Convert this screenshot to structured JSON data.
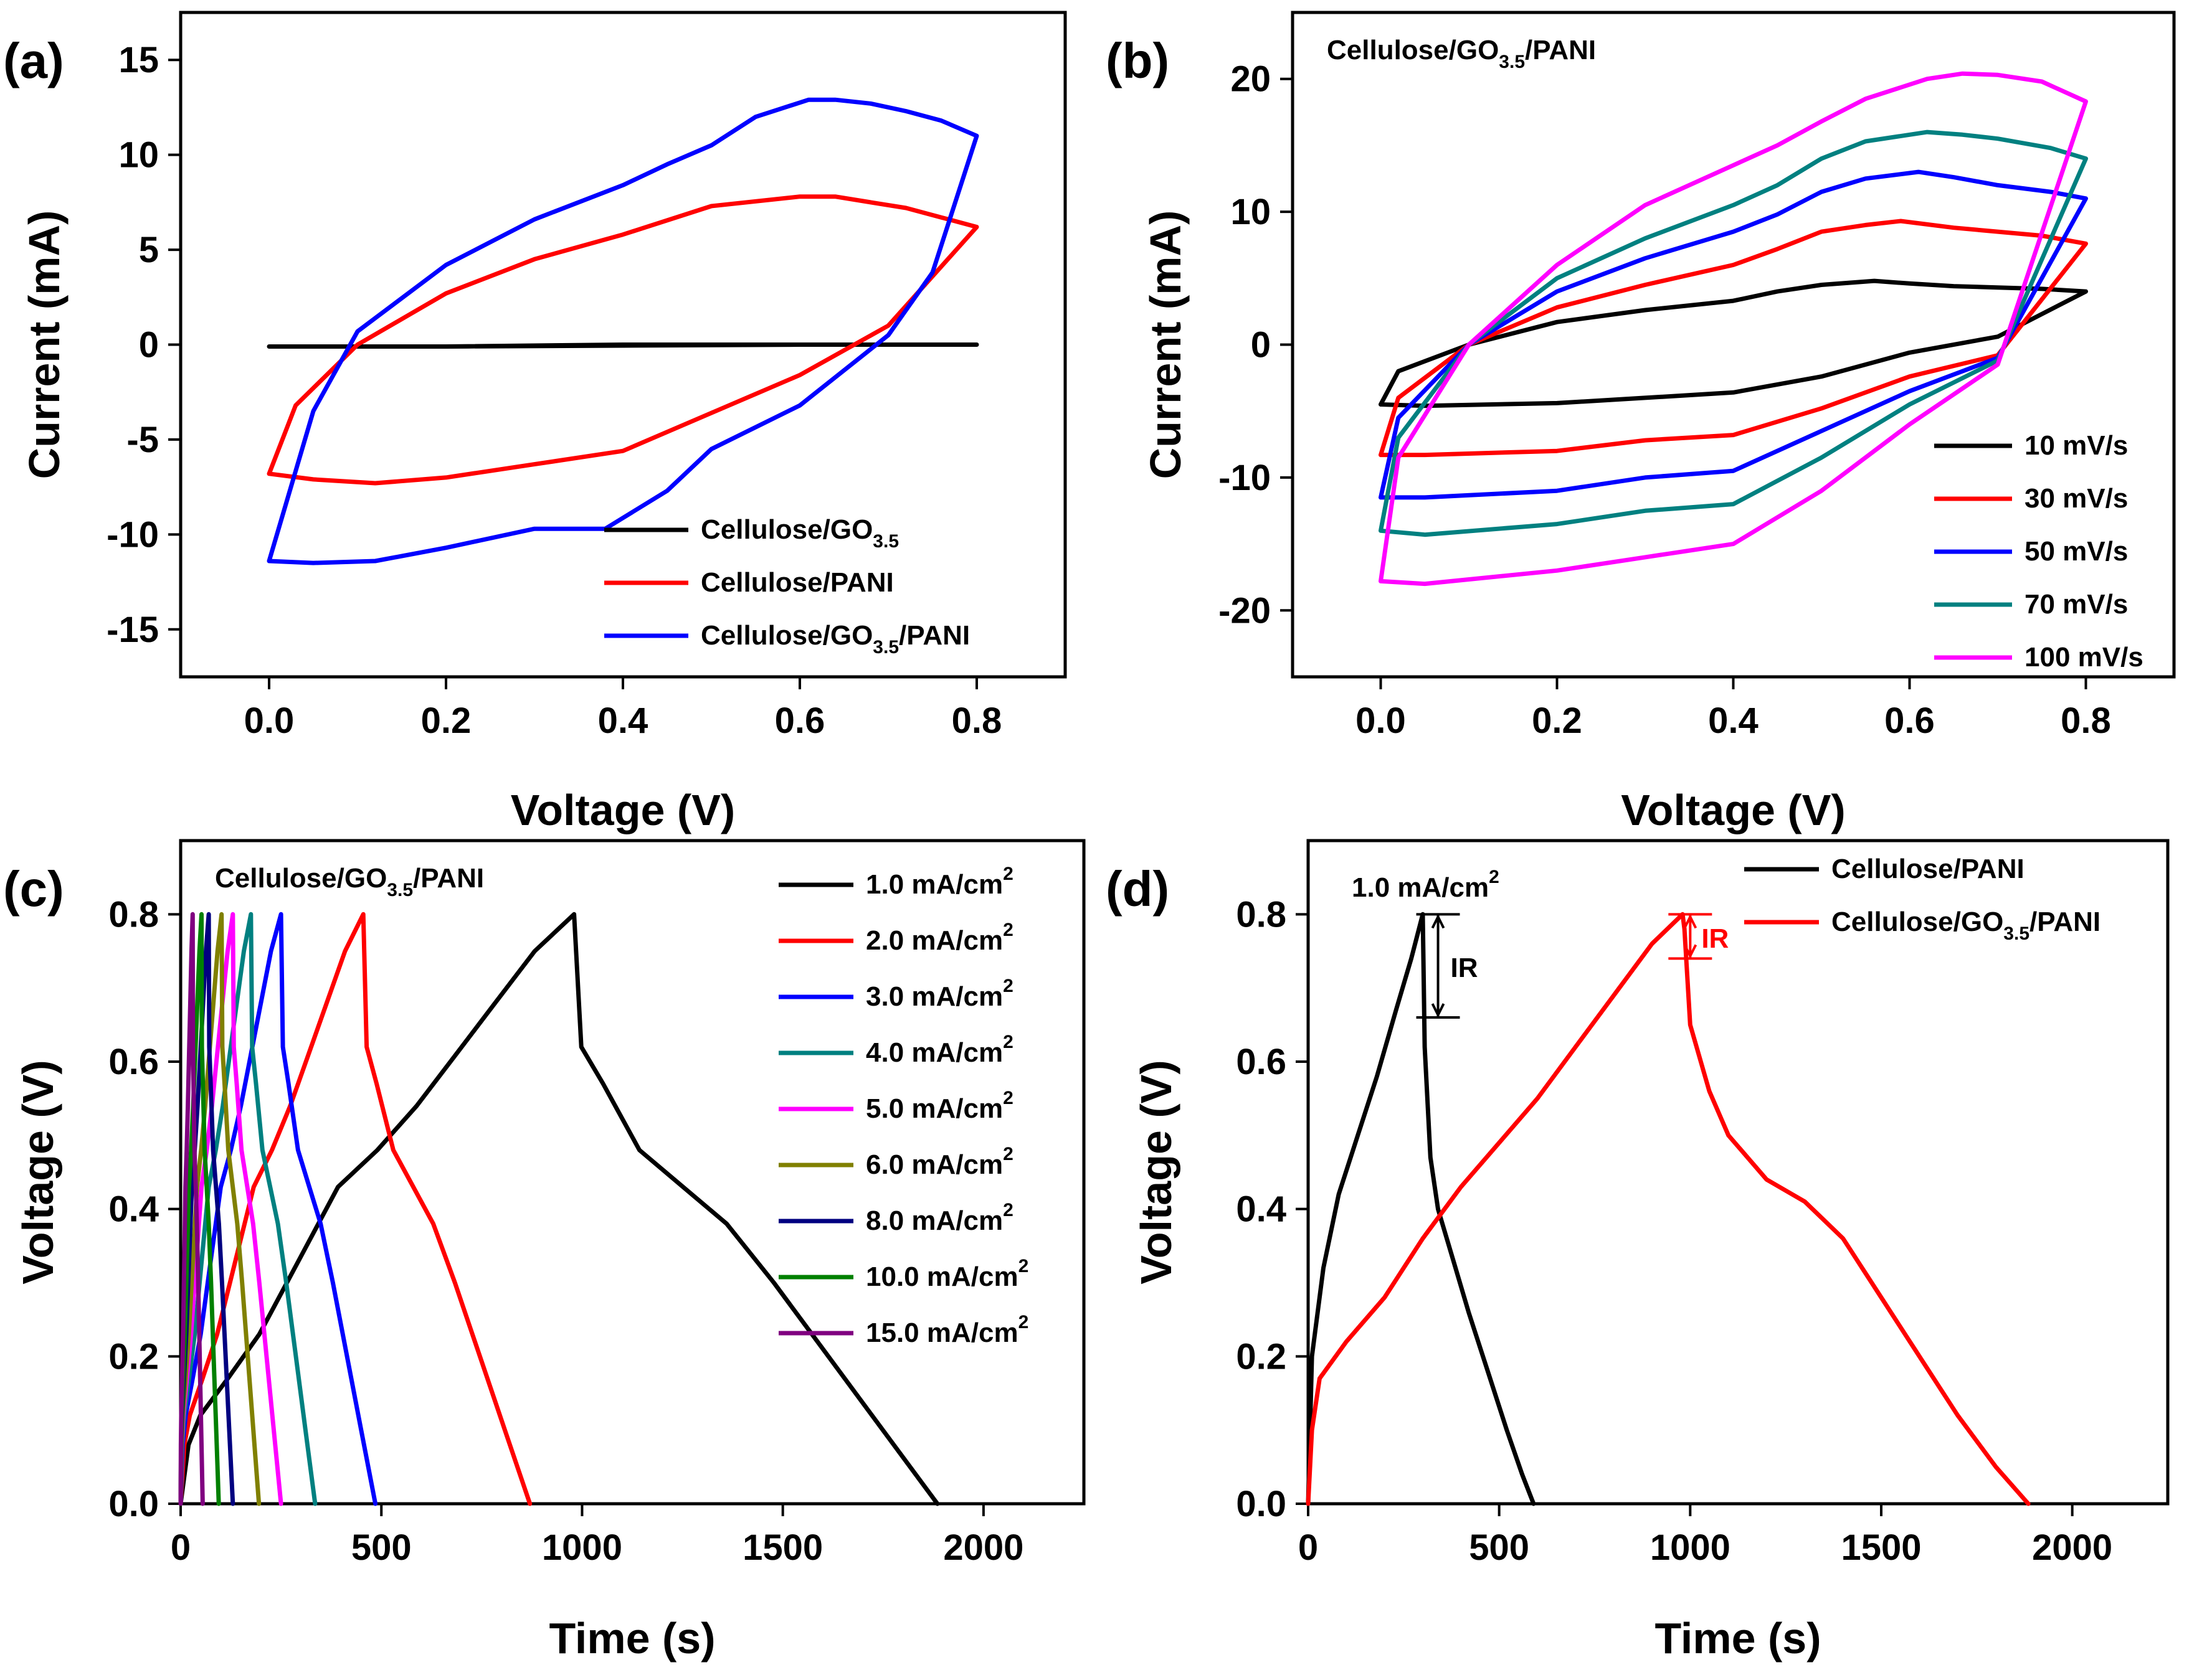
{
  "chart_data": [
    {
      "panel": "(a)",
      "type": "line",
      "title": "",
      "xlabel": "Voltage (V)",
      "ylabel": "Current (mA)",
      "xlim": [
        -0.1,
        0.9
      ],
      "ylim": [
        -17.5,
        17.5
      ],
      "xticks": [
        0.0,
        0.2,
        0.4,
        0.6,
        0.8
      ],
      "xtick_labels": [
        "0.0",
        "0.2",
        "0.4",
        "0.6",
        "0.8"
      ],
      "yticks": [
        -15,
        -10,
        -5,
        0,
        5,
        10,
        15
      ],
      "ytick_labels": [
        "-15",
        "-10",
        "-5",
        "0",
        "5",
        "10",
        "15"
      ],
      "legend_position": "bottom-right",
      "series": [
        {
          "name": "Cellulose/GO3.5",
          "legend": {
            "base": "Cellulose/GO",
            "sub": "3.5",
            "tail": ""
          },
          "color": "#000000",
          "x": [
            0.0,
            0.2,
            0.4,
            0.6,
            0.8,
            0.6,
            0.4,
            0.2,
            0.0
          ],
          "y": [
            -0.1,
            -0.1,
            0.0,
            0.0,
            0.0,
            0.0,
            -0.05,
            -0.1,
            -0.1
          ]
        },
        {
          "name": "Cellulose/PANI",
          "legend": {
            "base": "Cellulose/PANI",
            "sub": "",
            "tail": ""
          },
          "color": "#ff0000",
          "x": [
            0.0,
            0.05,
            0.12,
            0.2,
            0.3,
            0.4,
            0.5,
            0.6,
            0.7,
            0.8,
            0.76,
            0.72,
            0.68,
            0.64,
            0.6,
            0.5,
            0.4,
            0.3,
            0.2,
            0.1,
            0.03,
            0.0
          ],
          "y": [
            -6.8,
            -7.1,
            -7.3,
            -7.0,
            -6.3,
            -5.6,
            -3.6,
            -1.6,
            1.0,
            6.2,
            6.7,
            7.2,
            7.5,
            7.8,
            7.8,
            7.3,
            5.8,
            4.5,
            2.7,
            0.0,
            -3.2,
            -6.8
          ]
        },
        {
          "name": "Cellulose/GO3.5/PANI",
          "legend": {
            "base": "Cellulose/GO",
            "sub": "3.5",
            "tail": "/PANI"
          },
          "color": "#0000ff",
          "x": [
            0.0,
            0.05,
            0.12,
            0.2,
            0.3,
            0.38,
            0.45,
            0.5,
            0.6,
            0.7,
            0.75,
            0.8,
            0.76,
            0.72,
            0.68,
            0.64,
            0.61,
            0.55,
            0.5,
            0.45,
            0.4,
            0.3,
            0.2,
            0.1,
            0.05,
            0.0
          ],
          "y": [
            -11.4,
            -11.5,
            -11.4,
            -10.7,
            -9.7,
            -9.7,
            -7.7,
            -5.5,
            -3.2,
            0.5,
            3.8,
            11.0,
            11.8,
            12.3,
            12.7,
            12.9,
            12.9,
            12.0,
            10.5,
            9.5,
            8.4,
            6.6,
            4.2,
            0.7,
            -3.5,
            -11.4
          ]
        }
      ]
    },
    {
      "panel": "(b)",
      "type": "line",
      "title": {
        "base": "Cellulose/GO",
        "sub": "3.5",
        "tail": "/PANI"
      },
      "xlabel": "Voltage (V)",
      "ylabel": "Current (mA)",
      "xlim": [
        -0.1,
        0.9
      ],
      "ylim": [
        -25,
        25
      ],
      "xticks": [
        0.0,
        0.2,
        0.4,
        0.6,
        0.8
      ],
      "xtick_labels": [
        "0.0",
        "0.2",
        "0.4",
        "0.6",
        "0.8"
      ],
      "yticks": [
        -20,
        -10,
        0,
        10,
        20
      ],
      "ytick_labels": [
        "-20",
        "-10",
        "0",
        "10",
        "20"
      ],
      "legend_position": "bottom-right",
      "series": [
        {
          "name": "10 mV/s",
          "color": "#000000",
          "x": [
            0.0,
            0.05,
            0.2,
            0.3,
            0.4,
            0.5,
            0.6,
            0.7,
            0.8,
            0.75,
            0.7,
            0.65,
            0.6,
            0.56,
            0.5,
            0.45,
            0.4,
            0.3,
            0.2,
            0.1,
            0.02,
            0.0
          ],
          "y": [
            -4.5,
            -4.6,
            -4.4,
            -4.0,
            -3.6,
            -2.4,
            -0.6,
            0.6,
            4.0,
            4.2,
            4.3,
            4.4,
            4.6,
            4.8,
            4.5,
            4.0,
            3.3,
            2.6,
            1.7,
            0.0,
            -2.0,
            -4.5
          ]
        },
        {
          "name": "30 mV/s",
          "color": "#ff0000",
          "x": [
            0.0,
            0.05,
            0.2,
            0.3,
            0.4,
            0.5,
            0.6,
            0.7,
            0.8,
            0.75,
            0.7,
            0.65,
            0.59,
            0.55,
            0.5,
            0.45,
            0.4,
            0.3,
            0.2,
            0.1,
            0.02,
            0.0
          ],
          "y": [
            -8.3,
            -8.3,
            -8.0,
            -7.2,
            -6.8,
            -4.8,
            -2.4,
            -0.8,
            7.6,
            8.2,
            8.5,
            8.8,
            9.3,
            9.0,
            8.5,
            7.2,
            6.0,
            4.5,
            2.8,
            0.0,
            -4.0,
            -8.3
          ]
        },
        {
          "name": "50 mV/s",
          "color": "#0000ff",
          "x": [
            0.0,
            0.05,
            0.2,
            0.3,
            0.4,
            0.5,
            0.6,
            0.7,
            0.8,
            0.76,
            0.7,
            0.65,
            0.61,
            0.55,
            0.5,
            0.45,
            0.4,
            0.3,
            0.2,
            0.1,
            0.02,
            0.0
          ],
          "y": [
            -11.5,
            -11.5,
            -11.0,
            -10.0,
            -9.5,
            -6.5,
            -3.5,
            -1.0,
            11.0,
            11.5,
            12.0,
            12.6,
            13.0,
            12.5,
            11.5,
            9.8,
            8.5,
            6.5,
            4.0,
            0.0,
            -5.5,
            -11.5
          ]
        },
        {
          "name": "70 mV/s",
          "color": "#008080",
          "x": [
            0.0,
            0.05,
            0.2,
            0.3,
            0.4,
            0.5,
            0.6,
            0.7,
            0.8,
            0.76,
            0.7,
            0.66,
            0.62,
            0.55,
            0.5,
            0.45,
            0.4,
            0.3,
            0.2,
            0.1,
            0.02,
            0.0
          ],
          "y": [
            -14.0,
            -14.3,
            -13.5,
            -12.5,
            -12.0,
            -8.5,
            -4.5,
            -1.2,
            14.0,
            14.8,
            15.5,
            15.8,
            16.0,
            15.3,
            14.0,
            12.0,
            10.5,
            8.0,
            5.0,
            0.0,
            -7.0,
            -14.0
          ]
        },
        {
          "name": "100 mV/s",
          "color": "#ff00ff",
          "x": [
            0.0,
            0.05,
            0.2,
            0.3,
            0.4,
            0.5,
            0.6,
            0.7,
            0.8,
            0.75,
            0.7,
            0.66,
            0.62,
            0.55,
            0.5,
            0.45,
            0.4,
            0.3,
            0.2,
            0.1,
            0.02,
            0.0
          ],
          "y": [
            -17.8,
            -18.0,
            -17.0,
            -16.0,
            -15.0,
            -11.0,
            -6.0,
            -1.5,
            18.3,
            19.8,
            20.3,
            20.4,
            20.0,
            18.5,
            16.8,
            15.0,
            13.5,
            10.5,
            6.0,
            0.0,
            -8.5,
            -17.8
          ]
        }
      ]
    },
    {
      "panel": "(c)",
      "type": "line",
      "title": {
        "base": "Cellulose/GO",
        "sub": "3.5",
        "tail": "/PANI"
      },
      "xlabel": "Time (s)",
      "ylabel": "Voltage (V)",
      "xlim": [
        0,
        2250
      ],
      "ylim": [
        0,
        0.9
      ],
      "xticks": [
        0,
        500,
        1000,
        1500,
        2000
      ],
      "xtick_labels": [
        "0",
        "500",
        "1000",
        "1500",
        "2000"
      ],
      "yticks": [
        0.0,
        0.2,
        0.4,
        0.6,
        0.8
      ],
      "ytick_labels": [
        "0.0",
        "0.2",
        "0.4",
        "0.6",
        "0.8"
      ],
      "legend_position": "top-right",
      "series": [
        {
          "name": "1.0 mA/cm2",
          "legend": {
            "base": "1.0 mA/cm",
            "sup": "2"
          },
          "color": "#000000",
          "charge_end": 980,
          "discharge_end": 1885
        },
        {
          "name": "2.0 mA/cm2",
          "legend": {
            "base": "2.0 mA/cm",
            "sup": "2"
          },
          "color": "#ff0000",
          "charge_end": 455,
          "discharge_end": 870
        },
        {
          "name": "3.0 mA/cm2",
          "legend": {
            "base": "3.0 mA/cm",
            "sup": "2"
          },
          "color": "#0000ff",
          "charge_end": 250,
          "discharge_end": 485
        },
        {
          "name": "4.0 mA/cm2",
          "legend": {
            "base": "4.0 mA/cm",
            "sup": "2"
          },
          "color": "#008080",
          "charge_end": 175,
          "discharge_end": 335
        },
        {
          "name": "5.0 mA/cm2",
          "legend": {
            "base": "5.0 mA/cm",
            "sup": "2"
          },
          "color": "#ff00ff",
          "charge_end": 130,
          "discharge_end": 250
        },
        {
          "name": "6.0 mA/cm2",
          "legend": {
            "base": "6.0 mA/cm",
            "sup": "2"
          },
          "color": "#808000",
          "charge_end": 102,
          "discharge_end": 195
        },
        {
          "name": "8.0 mA/cm2",
          "legend": {
            "base": "8.0 mA/cm",
            "sup": "2"
          },
          "color": "#000080",
          "charge_end": 70,
          "discharge_end": 130
        },
        {
          "name": "10.0 mA/cm2",
          "legend": {
            "base": "10.0 mA/cm",
            "sup": "2"
          },
          "color": "#008000",
          "charge_end": 52,
          "discharge_end": 95
        },
        {
          "name": "15.0 mA/cm2",
          "legend": {
            "base": "15.0 mA/cm",
            "sup": "2"
          },
          "color": "#800080",
          "charge_end": 30,
          "discharge_end": 55
        }
      ],
      "gcd_shape": {
        "charge_frac": [
          0,
          0.02,
          0.05,
          0.12,
          0.2,
          0.3,
          0.4,
          0.5,
          0.6,
          0.7,
          0.8,
          0.9,
          1.0
        ],
        "charge_v": [
          0,
          0.08,
          0.12,
          0.17,
          0.23,
          0.33,
          0.43,
          0.48,
          0.54,
          0.61,
          0.68,
          0.75,
          0.8
        ],
        "discharge_frac": [
          0,
          0.02,
          0.08,
          0.18,
          0.3,
          0.42,
          0.55,
          0.7,
          0.85,
          1.0
        ],
        "discharge_v": [
          0.8,
          0.62,
          0.57,
          0.48,
          0.43,
          0.38,
          0.3,
          0.2,
          0.1,
          0.0
        ]
      }
    },
    {
      "panel": "(d)",
      "type": "line",
      "title": {
        "base": "1.0 mA/cm",
        "sup": "2"
      },
      "xlabel": "Time (s)",
      "ylabel": "Voltage (V)",
      "xlim": [
        0,
        2250
      ],
      "ylim": [
        0,
        0.9
      ],
      "xticks": [
        0,
        500,
        1000,
        1500,
        2000
      ],
      "xtick_labels": [
        "0",
        "500",
        "1000",
        "1500",
        "2000"
      ],
      "yticks": [
        0.0,
        0.2,
        0.4,
        0.6,
        0.8
      ],
      "ytick_labels": [
        "0.0",
        "0.2",
        "0.4",
        "0.6",
        "0.8"
      ],
      "legend_position": "top-right",
      "annotation_label": "IR",
      "series": [
        {
          "name": "Cellulose/PANI",
          "legend": {
            "base": "Cellulose/PANI",
            "sub": "",
            "tail": ""
          },
          "color": "#000000",
          "x": [
            0,
            10,
            40,
            80,
            130,
            180,
            230,
            270,
            300,
            305,
            320,
            340,
            380,
            420,
            470,
            520,
            560,
            590
          ],
          "y": [
            0.0,
            0.2,
            0.32,
            0.42,
            0.5,
            0.58,
            0.67,
            0.74,
            0.8,
            0.62,
            0.47,
            0.4,
            0.33,
            0.26,
            0.18,
            0.1,
            0.04,
            0.0
          ],
          "ir": {
            "time": 340,
            "v_top": 0.8,
            "v_bottom": 0.66
          }
        },
        {
          "name": "Cellulose/GO3.5/PANI",
          "legend": {
            "base": "Cellulose/GO",
            "sub": "3.5",
            "tail": "/PANI"
          },
          "color": "#ff0000",
          "x": [
            0,
            10,
            30,
            100,
            200,
            300,
            400,
            500,
            600,
            700,
            800,
            900,
            980,
            985,
            1000,
            1050,
            1100,
            1200,
            1300,
            1400,
            1500,
            1600,
            1700,
            1800,
            1885
          ],
          "y": [
            0.0,
            0.1,
            0.17,
            0.22,
            0.28,
            0.36,
            0.43,
            0.49,
            0.55,
            0.62,
            0.69,
            0.76,
            0.8,
            0.78,
            0.65,
            0.56,
            0.5,
            0.44,
            0.41,
            0.36,
            0.28,
            0.2,
            0.12,
            0.05,
            0.0
          ],
          "ir": {
            "time": 1000,
            "v_top": 0.8,
            "v_bottom": 0.74
          }
        }
      ]
    }
  ]
}
